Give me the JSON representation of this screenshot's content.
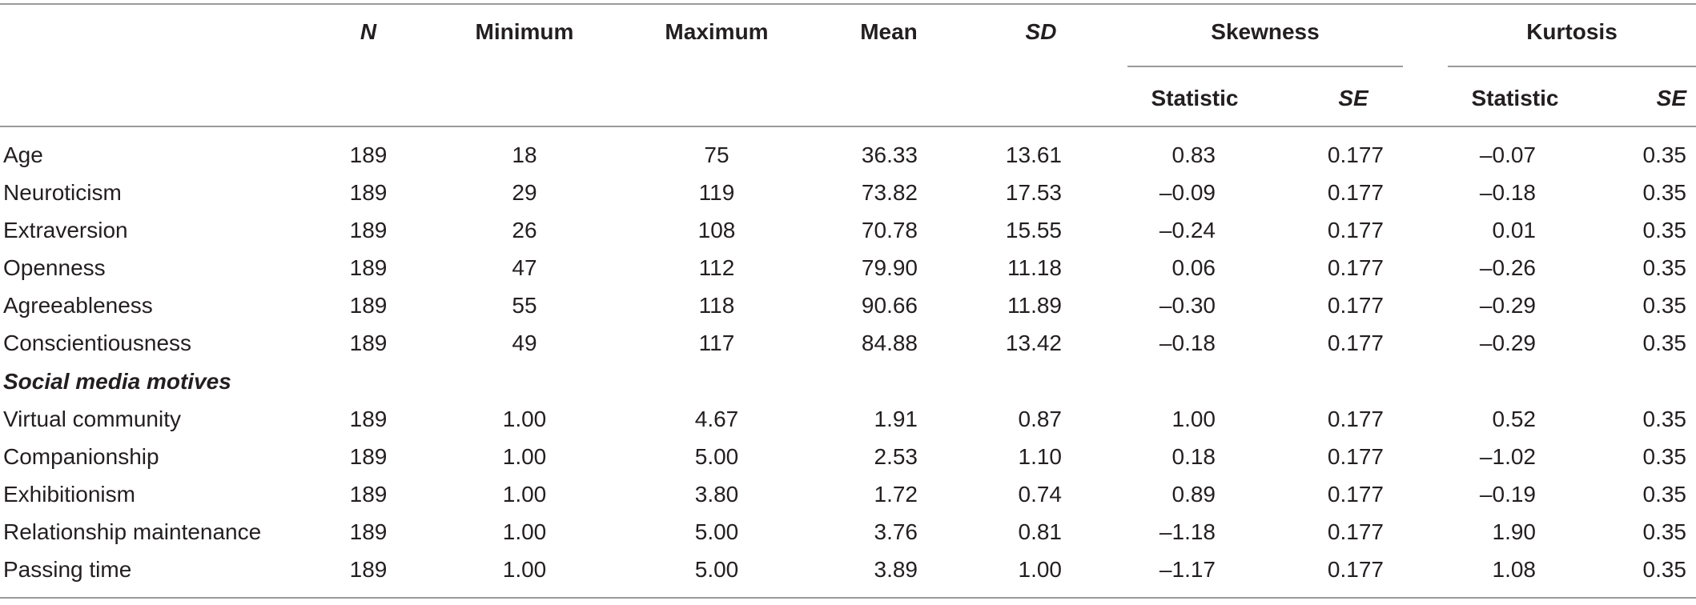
{
  "table": {
    "headers": {
      "n": "N",
      "minimum": "Minimum",
      "maximum": "Maximum",
      "mean": "Mean",
      "sd": "SD",
      "skewness": "Skewness",
      "kurtosis": "Kurtosis",
      "skew_statistic": "Statistic",
      "skew_se": "SE",
      "kurt_statistic": "Statistic",
      "kurt_se": "SE"
    },
    "section_label": "Social media motives",
    "rows": [
      {
        "label": "Age",
        "n": "189",
        "min": "18",
        "max": "75",
        "mean": "36.33",
        "sd": "13.61",
        "skew": "0.83",
        "skew_se": "0.177",
        "kurt": "–0.07",
        "kurt_se": "0.35"
      },
      {
        "label": "Neuroticism",
        "n": "189",
        "min": "29",
        "max": "119",
        "mean": "73.82",
        "sd": "17.53",
        "skew": "–0.09",
        "skew_se": "0.177",
        "kurt": "–0.18",
        "kurt_se": "0.35"
      },
      {
        "label": "Extraversion",
        "n": "189",
        "min": "26",
        "max": "108",
        "mean": "70.78",
        "sd": "15.55",
        "skew": "–0.24",
        "skew_se": "0.177",
        "kurt": "0.01",
        "kurt_se": "0.35"
      },
      {
        "label": "Openness",
        "n": "189",
        "min": "47",
        "max": "112",
        "mean": "79.90",
        "sd": "11.18",
        "skew": "0.06",
        "skew_se": "0.177",
        "kurt": "–0.26",
        "kurt_se": "0.35"
      },
      {
        "label": "Agreeableness",
        "n": "189",
        "min": "55",
        "max": "118",
        "mean": "90.66",
        "sd": "11.89",
        "skew": "–0.30",
        "skew_se": "0.177",
        "kurt": "–0.29",
        "kurt_se": "0.35"
      },
      {
        "label": "Conscientiousness",
        "n": "189",
        "min": "49",
        "max": "117",
        "mean": "84.88",
        "sd": "13.42",
        "skew": "–0.18",
        "skew_se": "0.177",
        "kurt": "–0.29",
        "kurt_se": "0.35"
      },
      {
        "label": "Virtual community",
        "n": "189",
        "min": "1.00",
        "max": "4.67",
        "mean": "1.91",
        "sd": "0.87",
        "skew": "1.00",
        "skew_se": "0.177",
        "kurt": "0.52",
        "kurt_se": "0.35"
      },
      {
        "label": "Companionship",
        "n": "189",
        "min": "1.00",
        "max": "5.00",
        "mean": "2.53",
        "sd": "1.10",
        "skew": "0.18",
        "skew_se": "0.177",
        "kurt": "–1.02",
        "kurt_se": "0.35"
      },
      {
        "label": "Exhibitionism",
        "n": "189",
        "min": "1.00",
        "max": "3.80",
        "mean": "1.72",
        "sd": "0.74",
        "skew": "0.89",
        "skew_se": "0.177",
        "kurt": "–0.19",
        "kurt_se": "0.35"
      },
      {
        "label": "Relationship maintenance",
        "n": "189",
        "min": "1.00",
        "max": "5.00",
        "mean": "3.76",
        "sd": "0.81",
        "skew": "–1.18",
        "skew_se": "0.177",
        "kurt": "1.90",
        "kurt_se": "0.35"
      },
      {
        "label": "Passing time",
        "n": "189",
        "min": "1.00",
        "max": "5.00",
        "mean": "3.89",
        "sd": "1.00",
        "skew": "–1.17",
        "skew_se": "0.177",
        "kurt": "1.08",
        "kurt_se": "0.35"
      }
    ]
  }
}
